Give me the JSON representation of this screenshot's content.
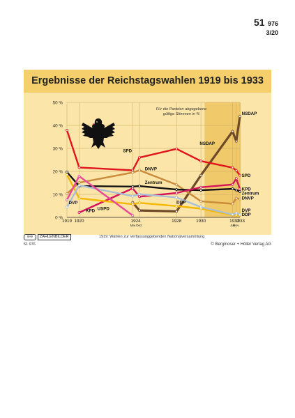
{
  "doc": {
    "number": "51",
    "number_small": "976",
    "sheet": "3/20"
  },
  "footer": {
    "series": "ZAHLENBILDER",
    "code": "51 976",
    "note": "1919: Wahlen zur Verfassunggebenden Nationalversammlung",
    "publisher": "© Bergmoser + Höller Verlag AG"
  },
  "chart_data": {
    "type": "line",
    "title": "Ergebnisse der Reichstagswahlen 1919 bis 1933",
    "annotation": "Für die Parteien abgegebene gültige Stimmen in %",
    "ylim": [
      0,
      50
    ],
    "yticks": [
      "0 %",
      "10 %",
      "20 %",
      "30 %",
      "40 %",
      "50 %"
    ],
    "ytick_values": [
      0,
      10,
      20,
      30,
      40,
      50
    ],
    "x": [
      1919,
      1920,
      1924.4,
      1924.95,
      1928,
      1930,
      1932.6,
      1932.9,
      1933.2
    ],
    "xtick_labels": [
      {
        "x": 1919,
        "label": "1919"
      },
      {
        "x": 1920,
        "label": "1920"
      },
      {
        "x": 1924.65,
        "label": "1924"
      },
      {
        "x": 1928,
        "label": "1928"
      },
      {
        "x": 1930,
        "label": "1930"
      },
      {
        "x": 1932.75,
        "label": "1932"
      },
      {
        "x": 1933.2,
        "label": "1933"
      }
    ],
    "xsub_labels": [
      {
        "x": 1924.4,
        "label": "Mai"
      },
      {
        "x": 1924.95,
        "label": "Dez."
      },
      {
        "x": 1932.6,
        "label": "Juli"
      },
      {
        "x": 1932.9,
        "label": "Nov."
      }
    ],
    "series": [
      {
        "name": "NSDAP",
        "color": "#6e4a28",
        "points": [
          [
            1924.4,
            6.5
          ],
          [
            1924.95,
            3.0
          ],
          [
            1928,
            2.6
          ],
          [
            1930,
            18.3
          ],
          [
            1932.6,
            37.4
          ],
          [
            1932.9,
            33.1
          ],
          [
            1933.2,
            43.9
          ]
        ]
      },
      {
        "name": "SPD",
        "color": "#e0141c",
        "points": [
          [
            1919,
            37.9
          ],
          [
            1920,
            21.7
          ],
          [
            1924.4,
            20.5
          ],
          [
            1924.95,
            26.0
          ],
          [
            1928,
            29.8
          ],
          [
            1930,
            24.5
          ],
          [
            1932.6,
            21.6
          ],
          [
            1932.9,
            20.4
          ],
          [
            1933.2,
            18.3
          ]
        ]
      },
      {
        "name": "DNVP",
        "color": "#c98a3a",
        "points": [
          [
            1919,
            10.3
          ],
          [
            1920,
            15.1
          ],
          [
            1924.4,
            19.5
          ],
          [
            1924.95,
            20.5
          ],
          [
            1928,
            14.2
          ],
          [
            1930,
            7.0
          ],
          [
            1932.6,
            5.9
          ],
          [
            1932.9,
            8.3
          ],
          [
            1933.2,
            8.0
          ]
        ]
      },
      {
        "name": "Zentrum",
        "color": "#111111",
        "points": [
          [
            1919,
            19.7
          ],
          [
            1920,
            13.6
          ],
          [
            1924.4,
            13.4
          ],
          [
            1924.95,
            13.6
          ],
          [
            1928,
            12.1
          ],
          [
            1930,
            11.8
          ],
          [
            1932.6,
            12.4
          ],
          [
            1932.9,
            11.9
          ],
          [
            1933.2,
            11.2
          ]
        ]
      },
      {
        "name": "KPD",
        "color": "#d4145a",
        "points": [
          [
            1920,
            2.1
          ],
          [
            1924.4,
            12.6
          ],
          [
            1924.95,
            9.0
          ],
          [
            1928,
            10.6
          ],
          [
            1930,
            13.1
          ],
          [
            1932.6,
            14.3
          ],
          [
            1932.9,
            16.9
          ],
          [
            1933.2,
            12.3
          ]
        ]
      },
      {
        "name": "DDP",
        "color": "#f5b800",
        "points": [
          [
            1919,
            18.6
          ],
          [
            1920,
            8.3
          ],
          [
            1924.4,
            5.7
          ],
          [
            1924.95,
            6.3
          ],
          [
            1928,
            4.9
          ],
          [
            1930,
            3.8
          ],
          [
            1932.6,
            1.0
          ],
          [
            1932.9,
            1.0
          ],
          [
            1933.2,
            0.9
          ]
        ]
      },
      {
        "name": "DVP",
        "color": "#a9bfd6",
        "points": [
          [
            1919,
            4.4
          ],
          [
            1920,
            13.9
          ],
          [
            1924.4,
            9.2
          ],
          [
            1924.95,
            10.1
          ],
          [
            1928,
            8.7
          ],
          [
            1930,
            4.5
          ],
          [
            1932.6,
            1.2
          ],
          [
            1932.9,
            1.9
          ],
          [
            1933.2,
            1.1
          ]
        ]
      },
      {
        "name": "USPD",
        "color": "#e8479a",
        "points": [
          [
            1919,
            7.6
          ],
          [
            1920,
            17.9
          ],
          [
            1924.4,
            0.8
          ]
        ]
      }
    ],
    "labels": [
      {
        "text": "NSDAP",
        "x": 1933.35,
        "y": 44.5
      },
      {
        "text": "NSDAP",
        "x": 1929.9,
        "y": 31.5
      },
      {
        "text": "SPD",
        "x": 1923.6,
        "y": 28.3
      },
      {
        "text": "SPD",
        "x": 1933.35,
        "y": 17.6
      },
      {
        "text": "DNVP",
        "x": 1925.4,
        "y": 20.5
      },
      {
        "text": "Zentrum",
        "x": 1925.4,
        "y": 14.6
      },
      {
        "text": "DDP",
        "x": 1928.0,
        "y": 5.9
      },
      {
        "text": "DVP",
        "x": 1919.15,
        "y": 5.7
      },
      {
        "text": "KPD",
        "x": 1920.55,
        "y": 2.3
      },
      {
        "text": "USPD",
        "x": 1921.5,
        "y": 3.2
      },
      {
        "text": "KPD",
        "x": 1933.35,
        "y": 11.7
      },
      {
        "text": "Zentrum",
        "x": 1933.35,
        "y": 9.9
      },
      {
        "text": "DNVP",
        "x": 1933.35,
        "y": 7.8
      },
      {
        "text": "DVP",
        "x": 1933.35,
        "y": 2.5
      },
      {
        "text": "DDP",
        "x": 1933.35,
        "y": 0.6
      }
    ]
  }
}
